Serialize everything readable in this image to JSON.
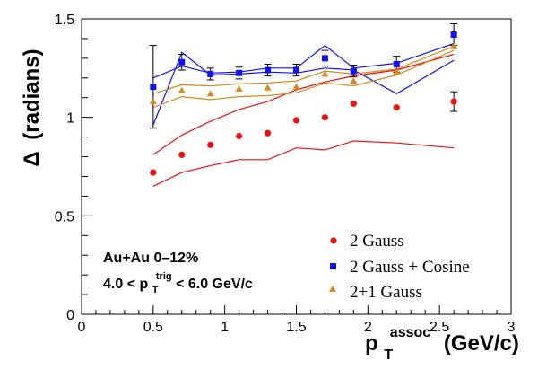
{
  "chart_data": {
    "type": "scatter",
    "xlabel_main": "p",
    "xlabel_sup": "assoc",
    "xlabel_sub": "T",
    "xlabel_unit": "(GeV/c)",
    "ylabel_symbol": "Δ",
    "ylabel_unit": "(radians)",
    "xlim": [
      0,
      3
    ],
    "ylim": [
      0,
      1.5
    ],
    "xticks": [
      0,
      0.5,
      1,
      1.5,
      2,
      2.5,
      3
    ],
    "xtick_labels": [
      "0",
      "0.5",
      "1",
      "1.5",
      "2",
      "2.5",
      "3"
    ],
    "yticks": [
      0,
      0.5,
      1,
      1.5
    ],
    "ytick_labels": [
      "0",
      "0.5",
      "1",
      "1.5"
    ],
    "grid": false,
    "legend_position": "bottom-right",
    "annotations": {
      "system": "Au+Au 0–12%",
      "range_prefix": "4.0 < p",
      "range_sup": "trig",
      "range_sub": "T",
      "range_suffix": " < 6.0 GeV/c"
    },
    "series": [
      {
        "name": "2 Gauss",
        "marker": "circle",
        "color": "#ee1111",
        "x": [
          0.5,
          0.7,
          0.9,
          1.1,
          1.3,
          1.5,
          1.7,
          1.9,
          2.2,
          2.6
        ],
        "y": [
          0.72,
          0.81,
          0.86,
          0.905,
          0.92,
          0.985,
          1.0,
          1.07,
          1.05,
          1.08
        ],
        "err": [
          0,
          0,
          0,
          0,
          0,
          0,
          0,
          0,
          0,
          0.05
        ],
        "band_x": [
          0.5,
          0.7,
          0.9,
          1.1,
          1.3,
          1.5,
          1.7,
          1.9,
          2.2,
          2.6
        ],
        "band_upper": [
          0.81,
          0.91,
          0.98,
          1.04,
          1.08,
          1.14,
          1.18,
          1.21,
          1.24,
          1.32
        ],
        "band_lower": [
          0.65,
          0.72,
          0.755,
          0.785,
          0.785,
          0.845,
          0.835,
          0.88,
          0.87,
          0.845
        ]
      },
      {
        "name": "2 Gauss + Cosine",
        "marker": "square",
        "color": "#1111ee",
        "x": [
          0.5,
          0.7,
          0.9,
          1.1,
          1.3,
          1.5,
          1.7,
          1.9,
          2.2,
          2.6
        ],
        "y": [
          1.155,
          1.28,
          1.22,
          1.225,
          1.24,
          1.24,
          1.3,
          1.235,
          1.27,
          1.42
        ],
        "err": [
          0.21,
          0.04,
          0.03,
          0.03,
          0.03,
          0.03,
          0.04,
          0.03,
          0.04,
          0.055
        ],
        "band_x": [
          0.5,
          0.7,
          0.9,
          1.1,
          1.3,
          1.5,
          1.7,
          1.9,
          2.2,
          2.6
        ],
        "band_upper": [
          1.2,
          1.26,
          1.225,
          1.23,
          1.25,
          1.25,
          1.365,
          1.25,
          1.275,
          1.375
        ],
        "band_lower": [
          0.96,
          1.33,
          1.215,
          1.22,
          1.23,
          1.225,
          1.25,
          1.24,
          1.12,
          1.29
        ]
      },
      {
        "name": "2+1 Gauss",
        "marker": "triangle",
        "color": "#d48a1e",
        "x": [
          0.5,
          0.7,
          0.9,
          1.1,
          1.3,
          1.5,
          1.7,
          1.9,
          2.2,
          2.6
        ],
        "y": [
          1.08,
          1.135,
          1.12,
          1.145,
          1.15,
          1.155,
          1.22,
          1.185,
          1.23,
          1.36
        ],
        "err": [
          0,
          0,
          0,
          0,
          0,
          0,
          0,
          0,
          0,
          0
        ],
        "band_x": [
          0.5,
          0.7,
          0.9,
          1.1,
          1.3,
          1.5,
          1.7,
          1.9,
          2.2,
          2.6
        ],
        "band_upper": [
          1.12,
          1.165,
          1.16,
          1.17,
          1.175,
          1.185,
          1.235,
          1.22,
          1.245,
          1.36
        ],
        "band_lower": [
          1.05,
          1.105,
          1.09,
          1.105,
          1.11,
          1.125,
          1.175,
          1.16,
          1.215,
          1.34
        ]
      }
    ]
  }
}
